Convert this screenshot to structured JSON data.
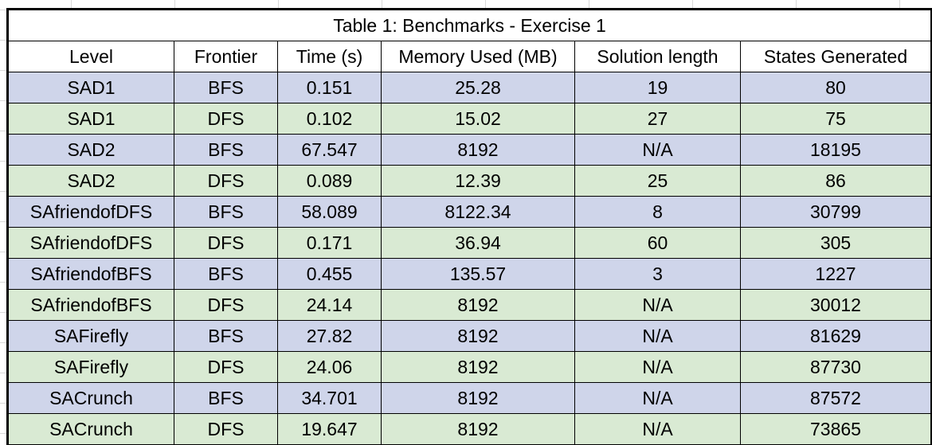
{
  "table": {
    "title": "Table 1: Benchmarks - Exercise 1",
    "columns": [
      "Level",
      "Frontier",
      "Time (s)",
      "Memory Used (MB)",
      "Solution length",
      "States Generated"
    ],
    "rows": [
      [
        "SAD1",
        "BFS",
        "0.151",
        "25.28",
        "19",
        "80"
      ],
      [
        "SAD1",
        "DFS",
        "0.102",
        "15.02",
        "27",
        "75"
      ],
      [
        "SAD2",
        "BFS",
        "67.547",
        "8192",
        "N/A",
        "18195"
      ],
      [
        "SAD2",
        "DFS",
        "0.089",
        "12.39",
        "25",
        "86"
      ],
      [
        "SAfriendofDFS",
        "BFS",
        "58.089",
        "8122.34",
        "8",
        "30799"
      ],
      [
        "SAfriendofDFS",
        "DFS",
        "0.171",
        "36.94",
        "60",
        "305"
      ],
      [
        "SAfriendofBFS",
        "BFS",
        "0.455",
        "135.57",
        "3",
        "1227"
      ],
      [
        "SAfriendofBFS",
        "DFS",
        "24.14",
        "8192",
        "N/A",
        "30012"
      ],
      [
        "SAFirefly",
        "BFS",
        "27.82",
        "8192",
        "N/A",
        "81629"
      ],
      [
        "SAFirefly",
        "DFS",
        "24.06",
        "8192",
        "N/A",
        "87730"
      ],
      [
        "SACrunch",
        "BFS",
        "34.701",
        "8192",
        "N/A",
        "87572"
      ],
      [
        "SACrunch",
        "DFS",
        "19.647",
        "8192",
        "N/A",
        "73865"
      ]
    ]
  },
  "colors": {
    "row_band_blue": "#cfd5ea",
    "row_band_green": "#d9ead3",
    "border": "#000000",
    "selection_border": "#1f7244"
  }
}
